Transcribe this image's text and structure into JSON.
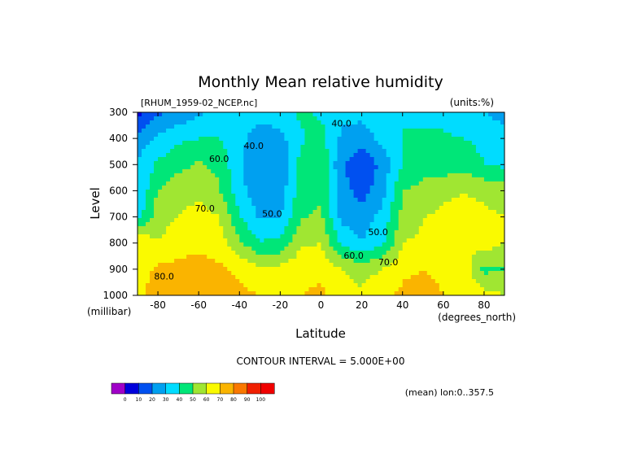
{
  "chart_data": {
    "type": "heatmap",
    "title": "Monthly Mean relative humidity",
    "dataset_label": "[RHUM_1959-02_NCEP.nc]",
    "units_label": "(units:%)",
    "xlabel": "Latitude",
    "x_units": "(degrees_north)",
    "ylabel": "Level",
    "y_units": "(millibar)",
    "xlim": [
      -90,
      90
    ],
    "ylim": [
      1000,
      300
    ],
    "x_ticks": [
      -80,
      -60,
      -40,
      -20,
      0,
      20,
      40,
      60,
      80
    ],
    "x_tick_labels": [
      "-80",
      "-60",
      "-40",
      "-20",
      "0",
      "20",
      "40",
      "60",
      "80"
    ],
    "y_ticks": [
      300,
      400,
      500,
      600,
      700,
      800,
      900,
      1000
    ],
    "y_tick_labels": [
      "300",
      "400",
      "500",
      "600",
      "700",
      "800",
      "900",
      "1000"
    ],
    "contour_interval_text": "CONTOUR INTERVAL = 5.000E+00",
    "mean_text": "(mean) lon:0..357.5",
    "contour_labels": [
      {
        "text": "40.0",
        "x": -33,
        "y": 440
      },
      {
        "text": "40.0",
        "x": 10,
        "y": 355
      },
      {
        "text": "60.0",
        "x": -50,
        "y": 490
      },
      {
        "text": "50.0",
        "x": -24,
        "y": 700
      },
      {
        "text": "70.0",
        "x": -57,
        "y": 680
      },
      {
        "text": "50.0",
        "x": 28,
        "y": 770
      },
      {
        "text": "60.0",
        "x": 16,
        "y": 860
      },
      {
        "text": "70.0",
        "x": 33,
        "y": 885
      },
      {
        "text": "80.0",
        "x": -77,
        "y": 940
      }
    ],
    "levels": [
      0,
      10,
      20,
      30,
      40,
      50,
      60,
      70,
      80,
      90,
      100
    ],
    "level_labels": [
      "0",
      "10",
      "20",
      "30",
      "40",
      "50",
      "60",
      "70",
      "80",
      "90",
      "100"
    ],
    "colors": [
      "#a000c8",
      "#0000dc",
      "#0050f0",
      "#00a0f0",
      "#00dcff",
      "#00e678",
      "#a0e632",
      "#fafa00",
      "#fab400",
      "#fa7800",
      "#f02000",
      "#f00000"
    ],
    "lat": [
      -90,
      -80,
      -70,
      -60,
      -50,
      -40,
      -30,
      -20,
      -10,
      0,
      10,
      20,
      30,
      40,
      50,
      60,
      70,
      80,
      90
    ],
    "plev": [
      300,
      400,
      500,
      600,
      700,
      800,
      900,
      1000
    ],
    "values": [
      [
        15,
        28,
        33,
        38,
        45,
        47,
        45,
        46,
        52,
        48,
        42,
        43,
        47,
        50,
        44,
        45,
        42,
        40,
        35
      ],
      [
        35,
        42,
        48,
        50,
        50,
        44,
        33,
        37,
        48,
        55,
        38,
        35,
        43,
        50,
        54,
        52,
        50,
        48,
        45
      ],
      [
        40,
        52,
        57,
        61,
        58,
        41,
        31,
        32,
        53,
        58,
        32,
        21,
        33,
        50,
        56,
        54,
        55,
        50,
        48
      ],
      [
        40,
        60,
        66,
        67,
        61,
        44,
        33,
        34,
        55,
        58,
        34,
        26,
        36,
        60,
        63,
        68,
        70,
        68,
        65
      ],
      [
        45,
        66,
        70,
        74,
        70,
        51,
        39,
        40,
        59,
        62,
        37,
        34,
        43,
        63,
        70,
        72,
        72,
        72,
        70
      ],
      [
        80,
        70,
        76,
        77,
        75,
        62,
        51,
        52,
        68,
        70,
        48,
        40,
        48,
        70,
        72,
        74,
        72,
        75,
        70
      ],
      [
        75,
        82,
        83,
        84,
        82,
        78,
        73,
        73,
        77,
        78,
        70,
        66,
        70,
        78,
        80,
        78,
        76,
        57,
        60
      ],
      [
        78,
        85,
        86,
        90,
        86,
        82,
        80,
        78,
        80,
        82,
        74,
        72,
        78,
        82,
        84,
        80,
        78,
        74,
        70
      ]
    ]
  }
}
